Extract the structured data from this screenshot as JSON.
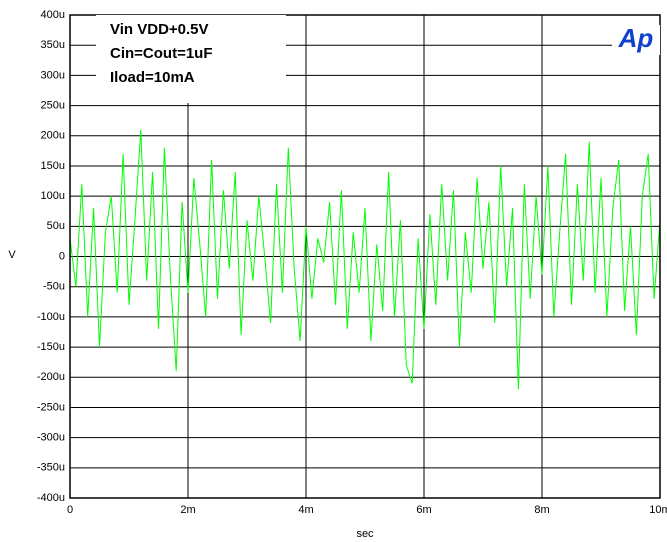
{
  "chart_data": {
    "type": "line",
    "logo": "Ap",
    "annotations": [
      "Vin VDD+0.5V",
      "Cin=Cout=1uF",
      "Iload=10mA"
    ],
    "xlabel": "sec",
    "ylabel": "V",
    "xlim": [
      0,
      0.01
    ],
    "ylim": [
      -0.0004,
      0.0004
    ],
    "xticks": [
      0,
      {
        "value": 0.002,
        "label": "2m"
      },
      {
        "value": 0.004,
        "label": "4m"
      },
      {
        "value": 0.006,
        "label": "6m"
      },
      {
        "value": 0.008,
        "label": "8m"
      },
      {
        "value": 0.01,
        "label": "10m"
      }
    ],
    "yticks": [
      {
        "value": 0.0004,
        "label": "400u"
      },
      {
        "value": 0.00035,
        "label": "350u"
      },
      {
        "value": 0.0003,
        "label": "300u"
      },
      {
        "value": 0.00025,
        "label": "250u"
      },
      {
        "value": 0.0002,
        "label": "200u"
      },
      {
        "value": 0.00015,
        "label": "150u"
      },
      {
        "value": 0.0001,
        "label": "100u"
      },
      {
        "value": 5e-05,
        "label": "50u"
      },
      0,
      {
        "value": -5e-05,
        "label": "-50u"
      },
      {
        "value": -0.0001,
        "label": "-100u"
      },
      {
        "value": -0.00015,
        "label": "-150u"
      },
      {
        "value": -0.0002,
        "label": "-200u"
      },
      {
        "value": -0.00025,
        "label": "-250u"
      },
      {
        "value": -0.0003,
        "label": "-300u"
      },
      {
        "value": -0.00035,
        "label": "-350u"
      },
      {
        "value": -0.0004,
        "label": "-400u"
      }
    ],
    "grid": true,
    "series": [
      {
        "color": "#00ff00",
        "x": [
          0,
          0.0001,
          0.0002,
          0.0003,
          0.0004,
          0.0005,
          0.0006,
          0.0007,
          0.0008,
          0.0009,
          0.001,
          0.0011,
          0.0012,
          0.0013,
          0.0014,
          0.0015,
          0.0016,
          0.0017,
          0.0018,
          0.0019,
          0.002,
          0.0021,
          0.0022,
          0.0023,
          0.0024,
          0.0025,
          0.0026,
          0.0027,
          0.0028,
          0.0029,
          0.003,
          0.0031,
          0.0032,
          0.0033,
          0.0034,
          0.0035,
          0.0036,
          0.0037,
          0.0038,
          0.0039,
          0.004,
          0.0041,
          0.0042,
          0.0043,
          0.0044,
          0.0045,
          0.0046,
          0.0047,
          0.0048,
          0.0049,
          0.005,
          0.0051,
          0.0052,
          0.0053,
          0.0054,
          0.0055,
          0.0056,
          0.0057,
          0.0058,
          0.0059,
          0.006,
          0.0061,
          0.0062,
          0.0063,
          0.0064,
          0.0065,
          0.0066,
          0.0067,
          0.0068,
          0.0069,
          0.007,
          0.0071,
          0.0072,
          0.0073,
          0.0074,
          0.0075,
          0.0076,
          0.0077,
          0.0078,
          0.0079,
          0.008,
          0.0081,
          0.0082,
          0.0083,
          0.0084,
          0.0085,
          0.0086,
          0.0087,
          0.0088,
          0.0089,
          0.009,
          0.0091,
          0.0092,
          0.0093,
          0.0094,
          0.0095,
          0.0096,
          0.0097,
          0.0098,
          0.0099,
          0.01
        ],
        "values": [
          3e-05,
          -5e-05,
          0.00012,
          -0.0001,
          8e-05,
          -0.00015,
          4e-05,
          0.0001,
          -6e-05,
          0.00017,
          -8e-05,
          6e-05,
          0.00021,
          -4e-05,
          0.00014,
          -0.00012,
          0.00018,
          -3e-05,
          -0.00019,
          9e-05,
          -6e-05,
          0.00013,
          2e-05,
          -0.0001,
          0.00016,
          -7e-05,
          0.00011,
          -2e-05,
          0.00014,
          -0.00013,
          6e-05,
          -4e-05,
          0.0001,
          0,
          -0.00011,
          0.00012,
          -6e-05,
          0.00018,
          -2e-05,
          -0.00014,
          5e-05,
          -7e-05,
          3e-05,
          -1e-05,
          9e-05,
          -8e-05,
          0.00011,
          -0.00012,
          4e-05,
          -6e-05,
          8e-05,
          -0.00014,
          2e-05,
          -9e-05,
          0.00014,
          -0.0001,
          6e-05,
          -0.00018,
          -0.00021,
          3e-05,
          -0.00012,
          7e-05,
          -8e-05,
          0.00012,
          -4e-05,
          0.00011,
          -0.00015,
          4e-05,
          -6e-05,
          0.00013,
          -2e-05,
          9e-05,
          -0.00011,
          0.00015,
          -5e-05,
          8e-05,
          -0.00022,
          0.00012,
          -7e-05,
          0.0001,
          -3e-05,
          0.00015,
          -0.0001,
          4e-05,
          0.00017,
          -8e-05,
          0.00012,
          -4e-05,
          0.00019,
          -6e-05,
          0.00013,
          -0.0001,
          8e-05,
          0.00016,
          -9e-05,
          5e-05,
          -0.00013,
          0.0001,
          0.00017,
          -7e-05,
          6e-05
        ]
      }
    ]
  }
}
